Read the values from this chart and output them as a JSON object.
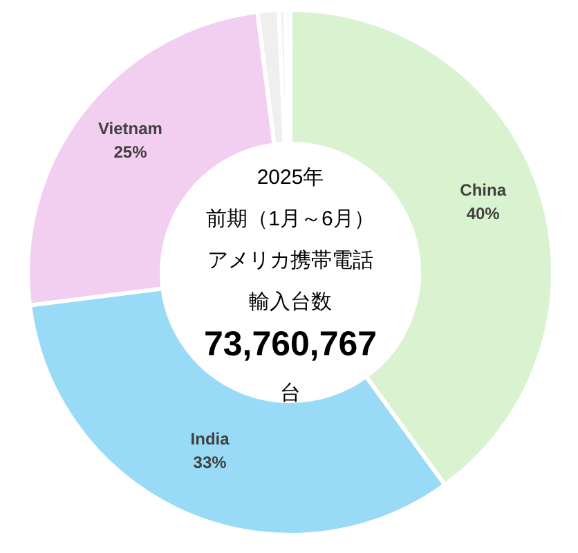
{
  "chart_data": {
    "type": "donut",
    "title": "2025年",
    "subtitle": "前期（1月～6月）",
    "annotations": [
      "アメリカ携帯電話",
      "輸入台数",
      "73,760,767",
      "台"
    ],
    "categories": [
      "China",
      "India",
      "Vietnam",
      null,
      null,
      null
    ],
    "values": [
      40,
      33,
      25,
      1.3,
      0.4,
      0.3
    ],
    "colors": [
      "#d9f2d0",
      "#99dbf7",
      "#f2cef0",
      "#efefef",
      "#efefef",
      "#efefef"
    ],
    "value_labels": [
      "40%",
      "33%",
      "25%",
      null,
      null,
      null
    ]
  }
}
